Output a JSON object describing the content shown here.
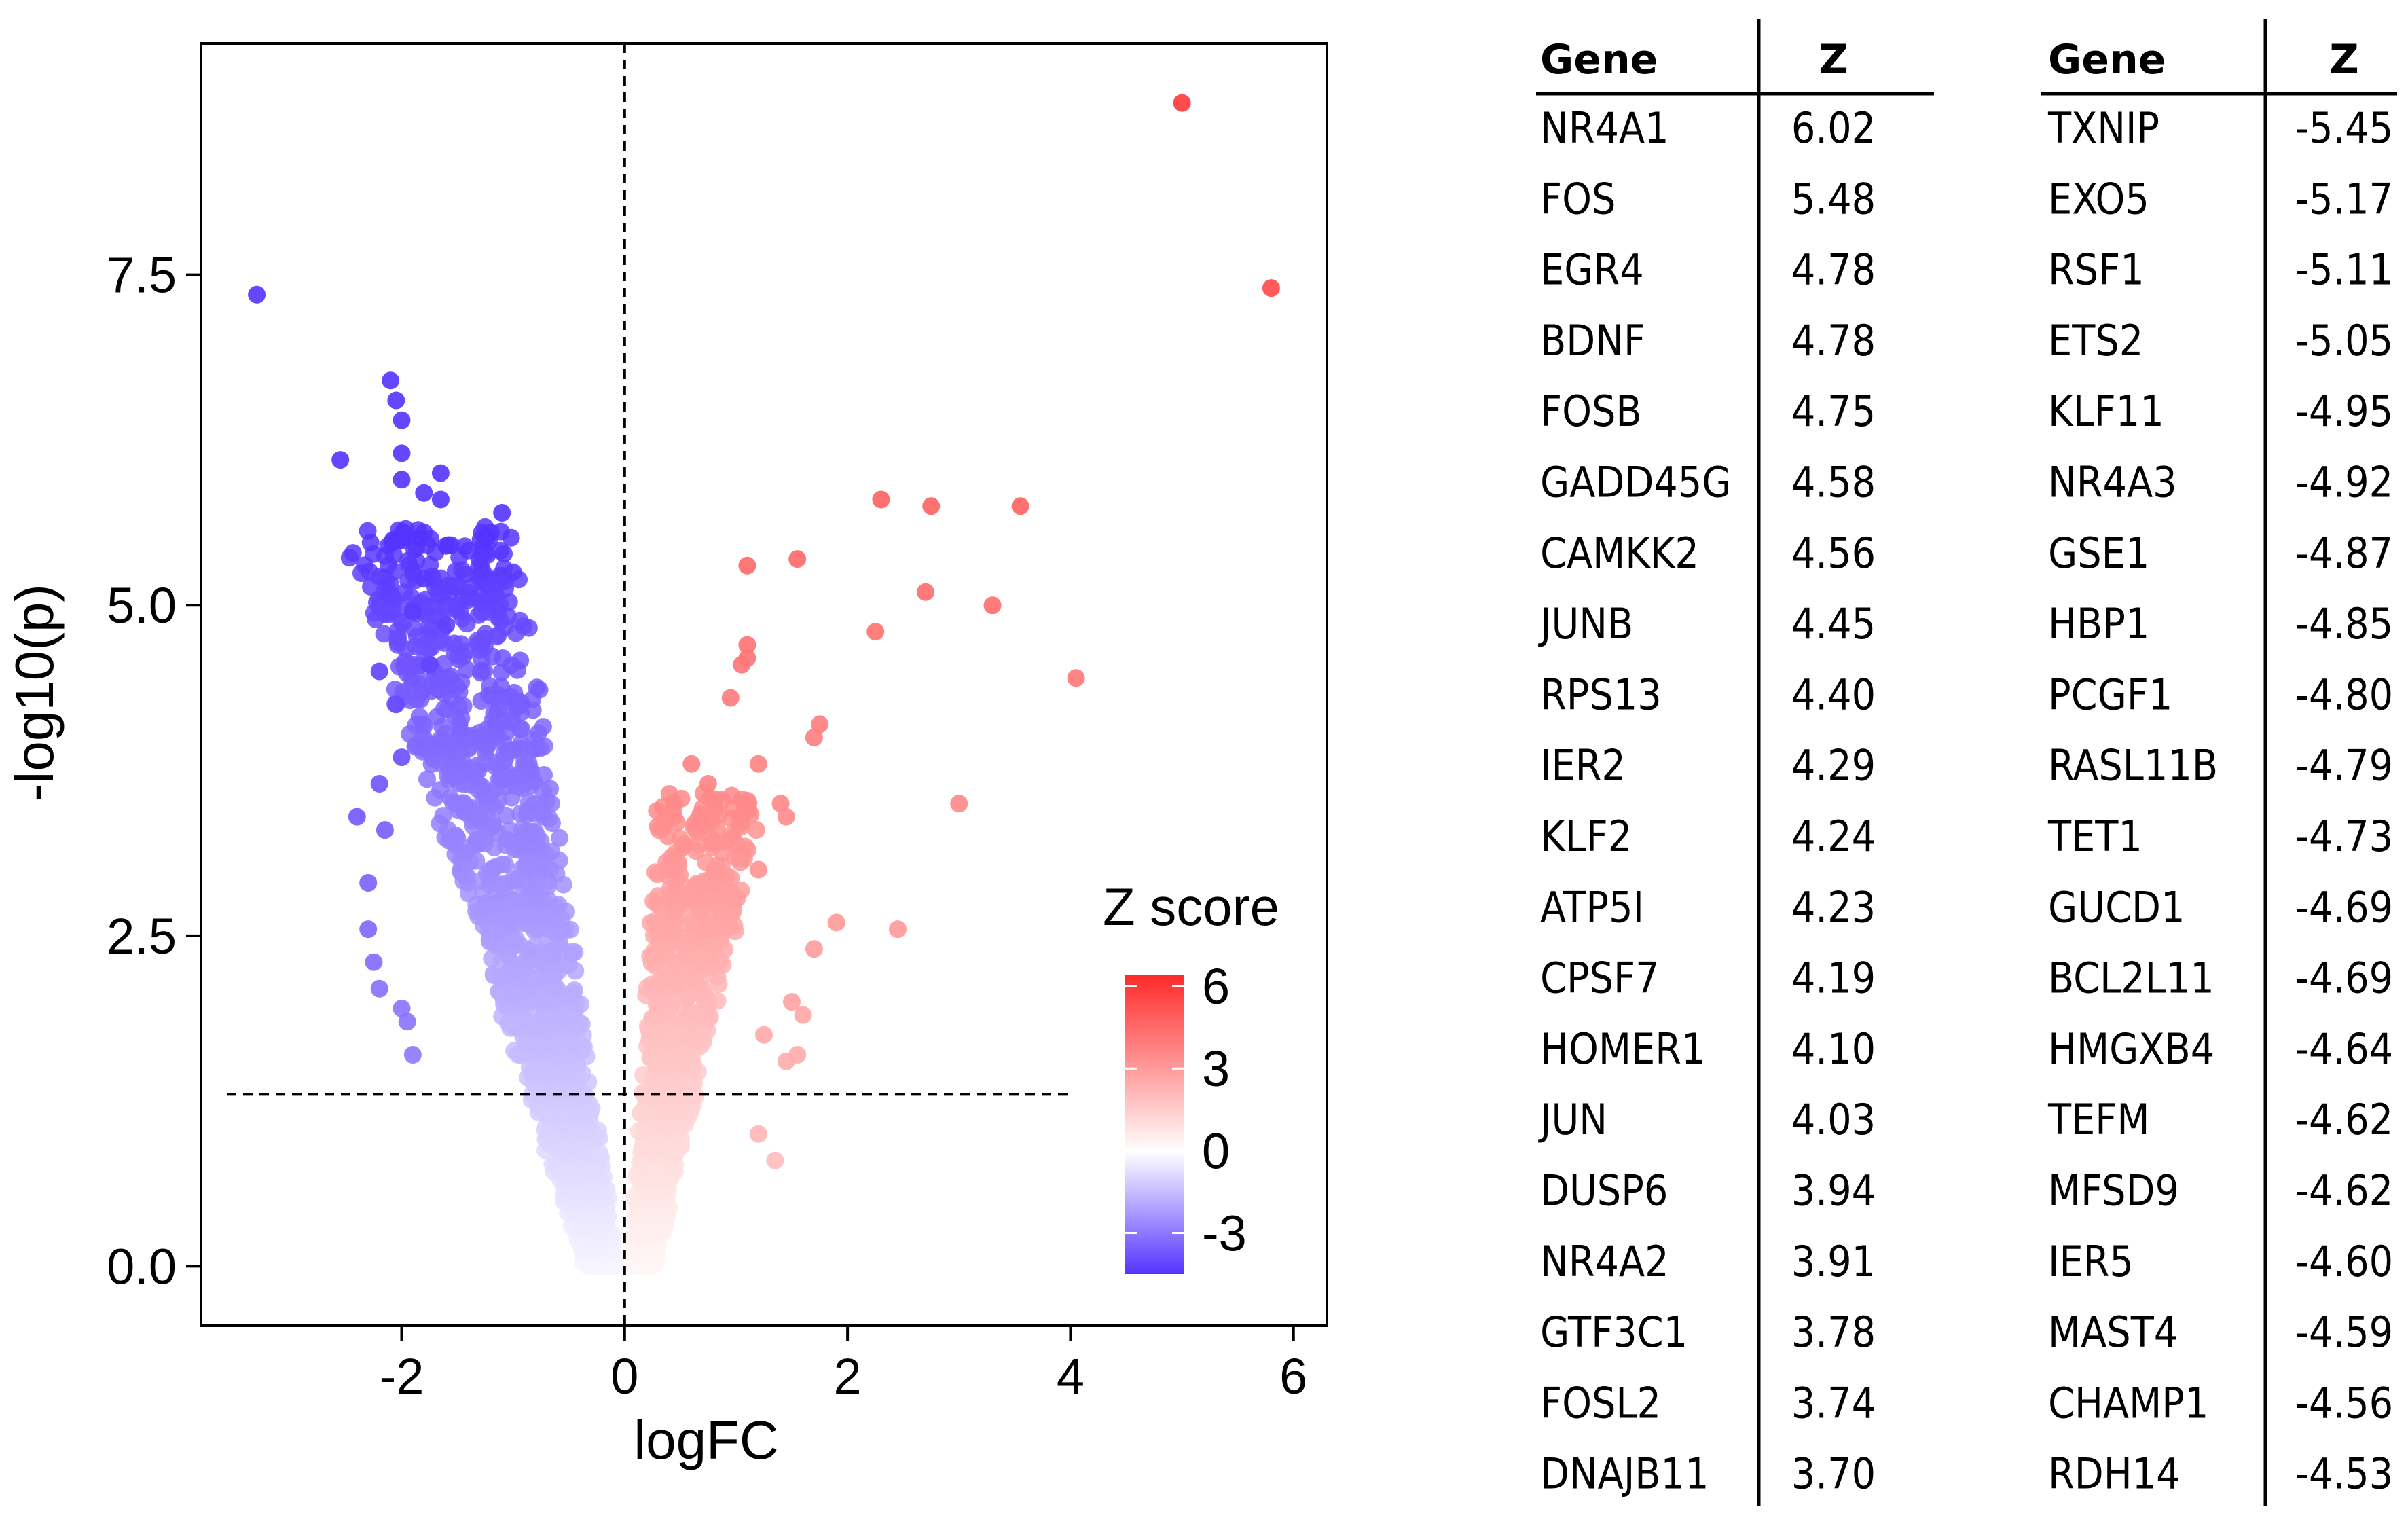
{
  "chart_data": [
    {
      "type": "scatter",
      "title": "",
      "xlabel": "logFC",
      "ylabel": "-log10(p)",
      "xlim": [
        -3.8,
        6.3
      ],
      "ylim": [
        -0.45,
        9.25
      ],
      "x_ticks": [
        -2,
        0,
        2,
        4,
        6
      ],
      "y_ticks": [
        0.0,
        2.5,
        5.0,
        7.5
      ],
      "x_tick_labels": [
        "-2",
        "0",
        "2",
        "4",
        "6"
      ],
      "y_tick_labels": [
        "0.0",
        "2.5",
        "5.0",
        "7.5"
      ],
      "reference_lines": {
        "vertical_x": 0,
        "horizontal_y": 1.3
      },
      "grid": false,
      "legend": {
        "title": "Z score",
        "placement": "right-inside",
        "range": [
          -4.5,
          6.4
        ],
        "ticks": [
          6,
          3,
          0,
          -3
        ],
        "tick_labels": [
          "6",
          "3",
          "0",
          "-3"
        ],
        "color_low": "#5533ff",
        "color_mid": "#ffffff",
        "color_high": "#ff2a2a"
      },
      "highlight_points": [
        {
          "x": 5.0,
          "y": 8.8,
          "z": 6.02
        },
        {
          "x": 5.8,
          "y": 7.4,
          "z": 5.48
        },
        {
          "x": -3.3,
          "y": 7.35,
          "z": -5.45
        },
        {
          "x": -2.1,
          "y": 6.7,
          "z": -5.17
        },
        {
          "x": -2.05,
          "y": 6.55,
          "z": -5.11
        },
        {
          "x": -2.0,
          "y": 6.4,
          "z": -5.05
        },
        {
          "x": -2.55,
          "y": 6.1,
          "z": -5.0
        },
        {
          "x": -2.0,
          "y": 6.15,
          "z": -4.95
        },
        {
          "x": -1.65,
          "y": 6.0,
          "z": -4.9
        },
        {
          "x": -2.0,
          "y": 5.95,
          "z": -4.9
        },
        {
          "x": -1.8,
          "y": 5.85,
          "z": -4.85
        },
        {
          "x": -1.65,
          "y": 5.8,
          "z": -4.8
        },
        {
          "x": -1.1,
          "y": 5.7,
          "z": -4.7
        },
        {
          "x": -1.2,
          "y": 5.55,
          "z": -4.6
        },
        {
          "x": -1.6,
          "y": 5.45,
          "z": -4.5
        },
        {
          "x": -1.3,
          "y": 5.35,
          "z": -4.4
        },
        {
          "x": -1.0,
          "y": 5.25,
          "z": -4.3
        },
        {
          "x": -1.8,
          "y": 5.2,
          "z": -4.4
        },
        {
          "x": -1.9,
          "y": 4.95,
          "z": -4.3
        },
        {
          "x": -1.6,
          "y": 4.85,
          "z": -4.2
        },
        {
          "x": -2.2,
          "y": 4.5,
          "z": -4.2
        },
        {
          "x": -1.75,
          "y": 4.55,
          "z": -4.1
        },
        {
          "x": -2.05,
          "y": 4.25,
          "z": -4.0
        },
        {
          "x": -2.0,
          "y": 3.85,
          "z": -3.9
        },
        {
          "x": -2.2,
          "y": 3.65,
          "z": -3.8
        },
        {
          "x": -2.4,
          "y": 3.4,
          "z": -3.7
        },
        {
          "x": -2.15,
          "y": 3.3,
          "z": -3.6
        },
        {
          "x": -2.3,
          "y": 2.9,
          "z": -3.5
        },
        {
          "x": -2.3,
          "y": 2.55,
          "z": -3.4
        },
        {
          "x": -2.25,
          "y": 2.3,
          "z": -3.3
        },
        {
          "x": -2.0,
          "y": 1.95,
          "z": -3.1
        },
        {
          "x": -1.9,
          "y": 1.6,
          "z": -3.0
        },
        {
          "x": -1.95,
          "y": 1.85,
          "z": -3.1
        },
        {
          "x": -2.2,
          "y": 2.1,
          "z": -3.2
        },
        {
          "x": 2.3,
          "y": 5.8,
          "z": 4.78
        },
        {
          "x": 2.75,
          "y": 5.75,
          "z": 4.78
        },
        {
          "x": 3.55,
          "y": 5.75,
          "z": 4.75
        },
        {
          "x": 1.55,
          "y": 5.35,
          "z": 4.58
        },
        {
          "x": 1.1,
          "y": 5.3,
          "z": 4.56
        },
        {
          "x": 2.7,
          "y": 5.1,
          "z": 4.45
        },
        {
          "x": 3.3,
          "y": 5.0,
          "z": 4.4
        },
        {
          "x": 2.25,
          "y": 4.8,
          "z": 4.29
        },
        {
          "x": 1.1,
          "y": 4.7,
          "z": 4.24
        },
        {
          "x": 1.1,
          "y": 4.6,
          "z": 4.23
        },
        {
          "x": 1.05,
          "y": 4.55,
          "z": 4.19
        },
        {
          "x": 4.05,
          "y": 4.45,
          "z": 4.1
        },
        {
          "x": 0.95,
          "y": 4.3,
          "z": 4.03
        },
        {
          "x": 1.75,
          "y": 4.1,
          "z": 3.94
        },
        {
          "x": 1.7,
          "y": 4.0,
          "z": 3.91
        },
        {
          "x": 0.6,
          "y": 3.8,
          "z": 3.78
        },
        {
          "x": 1.2,
          "y": 3.8,
          "z": 3.74
        },
        {
          "x": 0.75,
          "y": 3.65,
          "z": 3.7
        },
        {
          "x": 3.0,
          "y": 3.5,
          "z": 3.6
        },
        {
          "x": 1.4,
          "y": 3.5,
          "z": 3.6
        },
        {
          "x": 1.45,
          "y": 3.4,
          "z": 3.5
        },
        {
          "x": 1.2,
          "y": 3.0,
          "z": 3.3
        },
        {
          "x": 1.9,
          "y": 2.6,
          "z": 3.1
        },
        {
          "x": 2.45,
          "y": 2.55,
          "z": 3.1
        },
        {
          "x": 1.7,
          "y": 2.4,
          "z": 3.0
        },
        {
          "x": 1.5,
          "y": 2.0,
          "z": 2.8
        },
        {
          "x": 1.6,
          "y": 1.9,
          "z": 2.7
        },
        {
          "x": 1.25,
          "y": 1.75,
          "z": 2.6
        },
        {
          "x": 1.45,
          "y": 1.55,
          "z": 2.5
        },
        {
          "x": 1.55,
          "y": 1.6,
          "z": 2.5
        },
        {
          "x": 1.35,
          "y": 0.8,
          "z": 2.0
        },
        {
          "x": 1.2,
          "y": 1.0,
          "z": 2.2
        }
      ],
      "bulk_cloud": {
        "left": {
          "count": 1700,
          "x_center": -0.9,
          "x_spread": 0.6,
          "y_max": 5.6,
          "z_min": -4.5
        },
        "right": {
          "count": 1000,
          "x_center": 0.5,
          "x_spread": 0.35,
          "y_max": 3.6,
          "z_max": 3.8
        }
      }
    },
    {
      "type": "table",
      "columns": [
        "Gene",
        "Z",
        "Gene",
        "Z"
      ],
      "rows": [
        [
          "NR4A1",
          "6.02",
          "TXNIP",
          "-5.45"
        ],
        [
          "FOS",
          "5.48",
          "EXO5",
          "-5.17"
        ],
        [
          "EGR4",
          "4.78",
          "RSF1",
          "-5.11"
        ],
        [
          "BDNF",
          "4.78",
          "ETS2",
          "-5.05"
        ],
        [
          "FOSB",
          "4.75",
          "KLF11",
          "-4.95"
        ],
        [
          "GADD45G",
          "4.58",
          "NR4A3",
          "-4.92"
        ],
        [
          "CAMKK2",
          "4.56",
          "GSE1",
          "-4.87"
        ],
        [
          "JUNB",
          "4.45",
          "HBP1",
          "-4.85"
        ],
        [
          "RPS13",
          "4.40",
          "PCGF1",
          "-4.80"
        ],
        [
          "IER2",
          "4.29",
          "RASL11B",
          "-4.79"
        ],
        [
          "KLF2",
          "4.24",
          "TET1",
          "-4.73"
        ],
        [
          "ATP5I",
          "4.23",
          "GUCD1",
          "-4.69"
        ],
        [
          "CPSF7",
          "4.19",
          "BCL2L11",
          "-4.69"
        ],
        [
          "HOMER1",
          "4.10",
          "HMGXB4",
          "-4.64"
        ],
        [
          "JUN",
          "4.03",
          "TEFM",
          "-4.62"
        ],
        [
          "DUSP6",
          "3.94",
          "MFSD9",
          "-4.62"
        ],
        [
          "NR4A2",
          "3.91",
          "IER5",
          "-4.60"
        ],
        [
          "GTF3C1",
          "3.78",
          "MAST4",
          "-4.59"
        ],
        [
          "FOSL2",
          "3.74",
          "CHAMP1",
          "-4.56"
        ],
        [
          "DNAJB11",
          "3.70",
          "RDH14",
          "-4.53"
        ]
      ]
    }
  ]
}
